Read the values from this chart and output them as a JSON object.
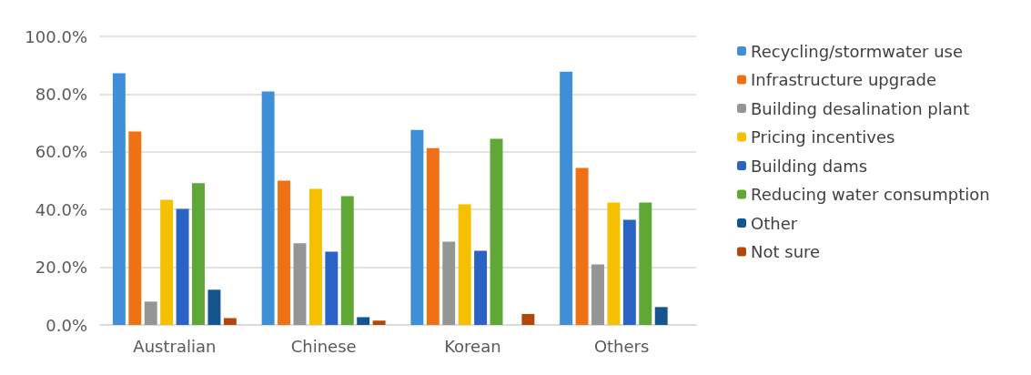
{
  "chart_data": {
    "type": "bar",
    "categories": [
      "Australian",
      "Chinese",
      "Korean",
      "Others"
    ],
    "series": [
      {
        "name": "Recycling/stormwater use",
        "color": "#3f8fd8",
        "values": [
          87.2,
          80.9,
          67.6,
          87.8
        ]
      },
      {
        "name": "Infrastructure upgrade",
        "color": "#f07014",
        "values": [
          67.0,
          50.0,
          61.3,
          54.4
        ]
      },
      {
        "name": "Building desalination plant",
        "color": "#959595",
        "values": [
          8.1,
          28.3,
          28.9,
          21.0
        ]
      },
      {
        "name": "Pricing incentives",
        "color": "#f5c000",
        "values": [
          43.4,
          47.2,
          41.8,
          42.4
        ]
      },
      {
        "name": "Building dams",
        "color": "#2a62c6",
        "values": [
          40.2,
          25.4,
          25.7,
          36.4
        ]
      },
      {
        "name": "Reducing water consumption",
        "color": "#5fa835",
        "values": [
          49.1,
          44.6,
          64.5,
          42.4
        ]
      },
      {
        "name": "Other",
        "color": "#14558f",
        "values": [
          12.2,
          2.7,
          0,
          6.2
        ]
      },
      {
        "name": "Not sure",
        "color": "#b2470a",
        "values": [
          2.4,
          1.5,
          3.8,
          0
        ]
      }
    ],
    "ylim": [
      0,
      100
    ],
    "yticks": [
      {
        "value": 0,
        "label": "0.0%"
      },
      {
        "value": 20,
        "label": "20.0%"
      },
      {
        "value": 40,
        "label": "40.0%"
      },
      {
        "value": 60,
        "label": "60.0%"
      },
      {
        "value": 80,
        "label": "80.0%"
      },
      {
        "value": 100,
        "label": "100.0%"
      }
    ],
    "grid": "y",
    "legend": "right"
  }
}
